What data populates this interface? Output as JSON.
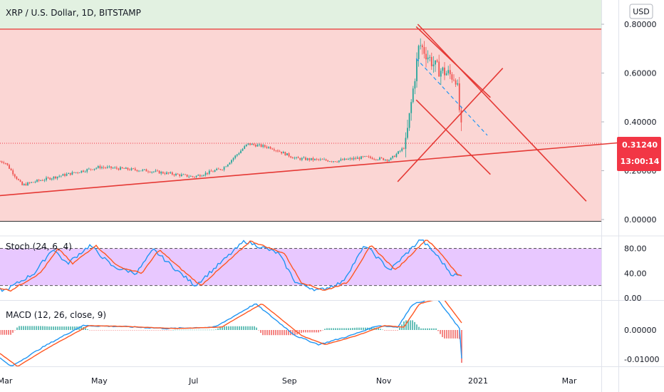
{
  "header": {
    "symbol_title": "XRP / U.S. Dollar, 1D, BITSTAMP",
    "currency": "USD"
  },
  "price_badge": {
    "price": "0.31240",
    "countdown": "13:00:14"
  },
  "colors": {
    "up": "#26a69a",
    "down": "#ef5350",
    "trend": "#e53935",
    "zone_green": "#e2f1e1",
    "zone_red": "#fbd6d4",
    "stoch_band": "#e8c8ff",
    "stoch_k": "#2196f3",
    "stoch_d": "#ff5722",
    "macd_line": "#2196f3",
    "signal_line": "#ff5722",
    "hist_up": "#26a69a",
    "hist_down": "#ef5350",
    "badge": "#f23645"
  },
  "chart_data": [
    {
      "type": "candlestick",
      "title": "XRP / U.S. Dollar, 1D, BITSTAMP",
      "y_ticks": [
        "0.80000",
        "0.60000",
        "0.40000",
        "0.20000",
        "0.00000"
      ],
      "ylim": [
        0,
        0.8
      ],
      "current_price": 0.3124,
      "resistance_level": 0.78,
      "x_ticks": [
        "Mar",
        "May",
        "Jul",
        "Sep",
        "Nov",
        "2021",
        "Mar"
      ],
      "price_path": [
        {
          "date": "2020-02-15",
          "price": 0.25
        },
        {
          "date": "2020-03-01",
          "price": 0.235
        },
        {
          "date": "2020-03-12",
          "price": 0.14
        },
        {
          "date": "2020-03-20",
          "price": 0.155
        },
        {
          "date": "2020-04-10",
          "price": 0.185
        },
        {
          "date": "2020-05-01",
          "price": 0.215
        },
        {
          "date": "2020-06-01",
          "price": 0.2
        },
        {
          "date": "2020-07-01",
          "price": 0.175
        },
        {
          "date": "2020-07-20",
          "price": 0.21
        },
        {
          "date": "2020-08-05",
          "price": 0.31
        },
        {
          "date": "2020-08-20",
          "price": 0.295
        },
        {
          "date": "2020-09-05",
          "price": 0.25
        },
        {
          "date": "2020-10-01",
          "price": 0.24
        },
        {
          "date": "2020-10-20",
          "price": 0.255
        },
        {
          "date": "2020-11-05",
          "price": 0.245
        },
        {
          "date": "2020-11-15",
          "price": 0.3
        },
        {
          "date": "2020-11-24",
          "price": 0.72
        },
        {
          "date": "2020-12-05",
          "price": 0.62
        },
        {
          "date": "2020-12-18",
          "price": 0.58
        },
        {
          "date": "2020-12-22",
          "price": 0.31
        }
      ],
      "trend_lines": [
        {
          "from": {
            "date": "2020-02-21",
            "price": 0.095
          },
          "to": {
            "date": "2021-04-03",
            "price": 0.315
          }
        },
        {
          "from": {
            "date": "2020-11-10",
            "price": 0.155
          },
          "to": {
            "date": "2021-01-17",
            "price": 0.62
          }
        },
        {
          "from": {
            "date": "2020-11-23",
            "price": 0.8
          },
          "to": {
            "date": "2021-03-12",
            "price": 0.075
          }
        },
        {
          "from": {
            "date": "2020-11-22",
            "price": 0.79
          },
          "to": {
            "date": "2021-01-09",
            "price": 0.5
          }
        },
        {
          "from": {
            "date": "2020-11-22",
            "price": 0.49
          },
          "to": {
            "date": "2021-01-09",
            "price": 0.185
          }
        }
      ],
      "dashed_projection": {
        "from": {
          "date": "2020-11-22",
          "price": 0.66
        },
        "to": {
          "date": "2021-01-07",
          "price": 0.345
        }
      }
    },
    {
      "type": "line",
      "title": "Stoch (24, 6, 4)",
      "y_ticks": [
        "80.00",
        "40.00",
        "0.00"
      ],
      "ylim": [
        0,
        100
      ],
      "levels": [
        80,
        20
      ],
      "path": [
        {
          "date": "2020-02-15",
          "value": 20
        },
        {
          "date": "2020-03-01",
          "value": 12
        },
        {
          "date": "2020-03-20",
          "value": 40
        },
        {
          "date": "2020-04-01",
          "value": 80
        },
        {
          "date": "2020-04-10",
          "value": 55
        },
        {
          "date": "2020-04-25",
          "value": 85
        },
        {
          "date": "2020-05-10",
          "value": 50
        },
        {
          "date": "2020-05-25",
          "value": 40
        },
        {
          "date": "2020-06-05",
          "value": 78
        },
        {
          "date": "2020-06-20",
          "value": 45
        },
        {
          "date": "2020-07-02",
          "value": 20
        },
        {
          "date": "2020-07-20",
          "value": 60
        },
        {
          "date": "2020-08-03",
          "value": 92
        },
        {
          "date": "2020-08-25",
          "value": 72
        },
        {
          "date": "2020-09-05",
          "value": 25
        },
        {
          "date": "2020-09-20",
          "value": 12
        },
        {
          "date": "2020-10-05",
          "value": 25
        },
        {
          "date": "2020-10-20",
          "value": 85
        },
        {
          "date": "2020-11-05",
          "value": 45
        },
        {
          "date": "2020-11-25",
          "value": 95
        },
        {
          "date": "2020-12-05",
          "value": 70
        },
        {
          "date": "2020-12-15",
          "value": 38
        },
        {
          "date": "2020-12-22",
          "value": 35
        }
      ]
    },
    {
      "type": "bar",
      "title": "MACD (12, 26, close, 9)",
      "y_ticks": [
        "0.00000",
        "-0.01000"
      ],
      "ylim": [
        -0.0145,
        0.0115
      ],
      "path": [
        {
          "date": "2020-02-15",
          "value": -0.005
        },
        {
          "date": "2020-03-05",
          "value": -0.0125
        },
        {
          "date": "2020-03-25",
          "value": -0.006
        },
        {
          "date": "2020-04-20",
          "value": 0.0015
        },
        {
          "date": "2020-05-15",
          "value": 0.0012
        },
        {
          "date": "2020-06-15",
          "value": 0.0005
        },
        {
          "date": "2020-07-15",
          "value": 0.001
        },
        {
          "date": "2020-08-10",
          "value": 0.009
        },
        {
          "date": "2020-09-05",
          "value": -0.002
        },
        {
          "date": "2020-09-20",
          "value": -0.005
        },
        {
          "date": "2020-10-10",
          "value": -0.002
        },
        {
          "date": "2020-10-28",
          "value": 0.0015
        },
        {
          "date": "2020-11-10",
          "value": 0.001
        },
        {
          "date": "2020-11-20",
          "value": 0.009
        },
        {
          "date": "2020-12-05",
          "value": 0.011
        },
        {
          "date": "2020-12-20",
          "value": 0.0005
        },
        {
          "date": "2020-12-22",
          "value": -0.014
        }
      ]
    }
  ]
}
